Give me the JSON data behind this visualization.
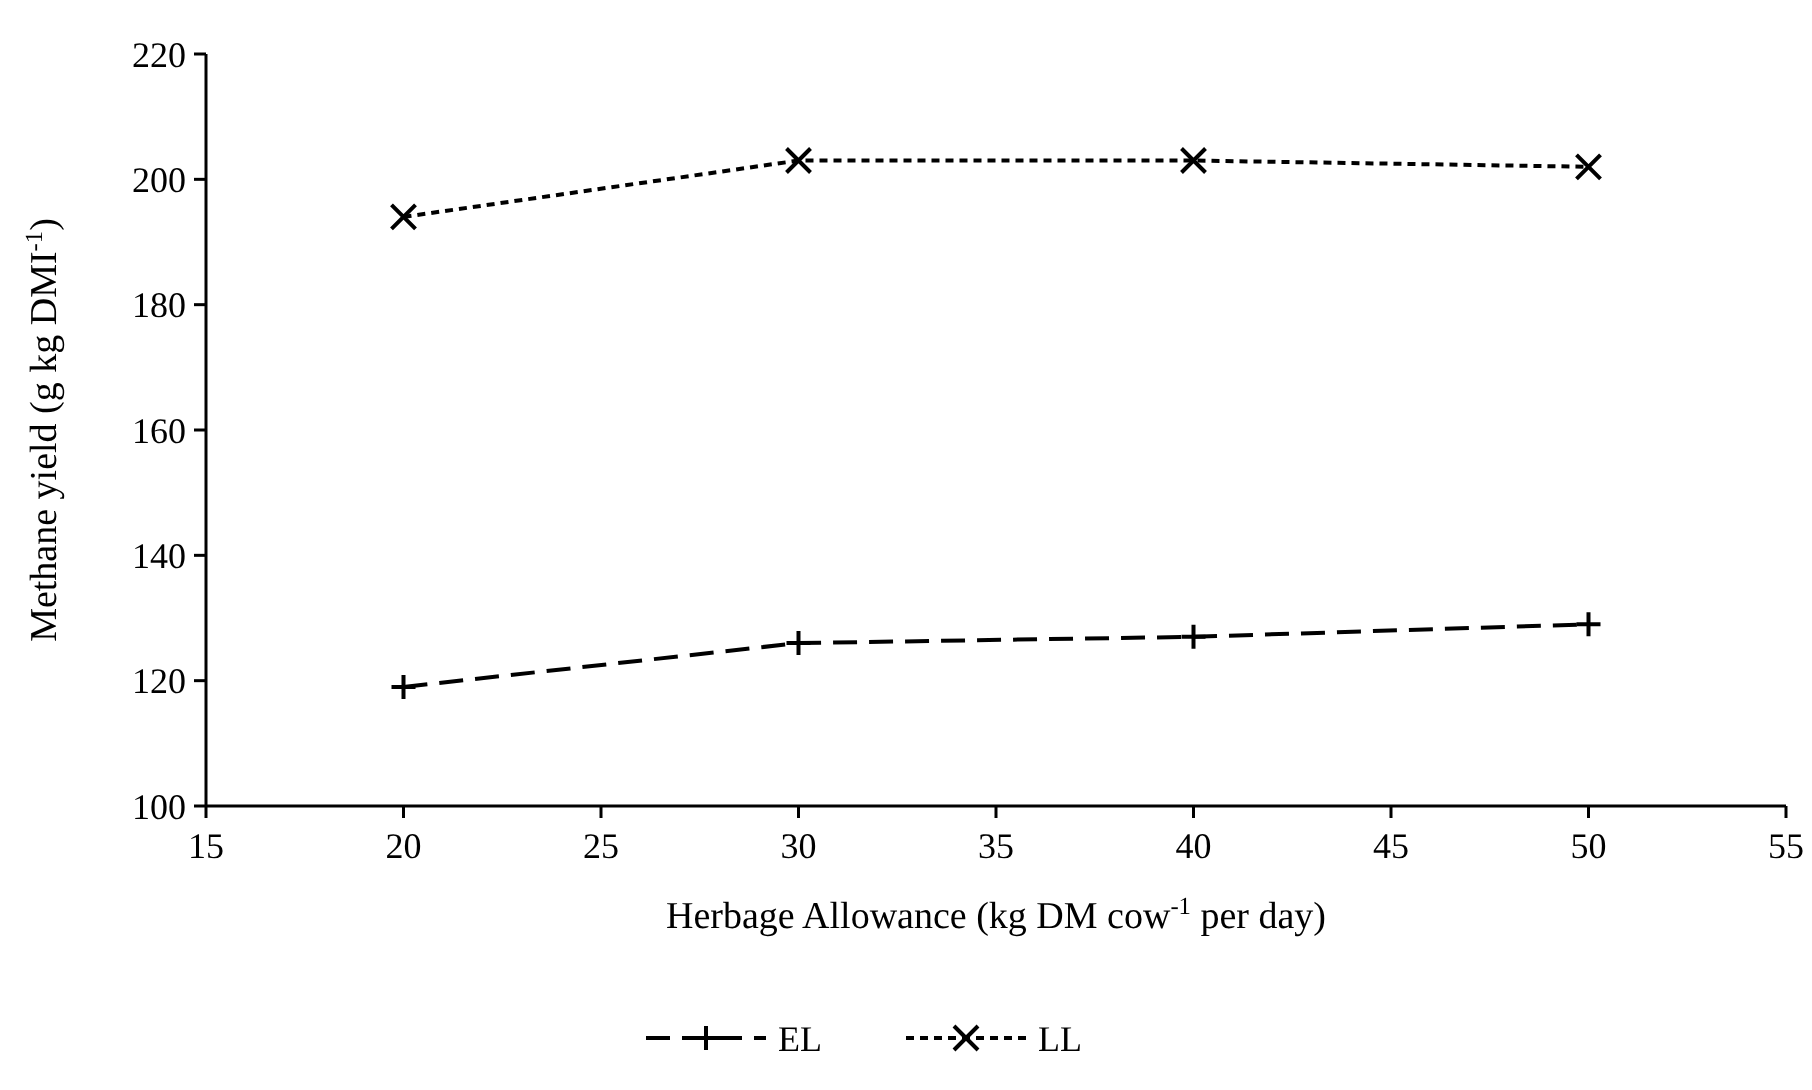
{
  "chart_data": {
    "type": "line",
    "xlabel": "Herbage Allowance (kg DM cow$^{-1}$ per day)",
    "ylabel": "Methane yield (g kg DMI$^{-1}$)",
    "x": [
      20,
      30,
      40,
      50
    ],
    "series": [
      {
        "name": "EL",
        "color": "#000000",
        "values": [
          119,
          126,
          127,
          129
        ],
        "marker": "plus",
        "line_style": "dashed"
      },
      {
        "name": "LL",
        "color": "#000000",
        "values": [
          194,
          203,
          203,
          202
        ],
        "marker": "cross",
        "line_style": "dotted"
      }
    ],
    "xlim": [
      15,
      55
    ],
    "xticks": [
      15,
      20,
      25,
      30,
      35,
      40,
      45,
      50,
      55
    ],
    "ylim": [
      100,
      220
    ],
    "yticks": [
      100,
      120,
      140,
      160,
      180,
      200,
      220
    ],
    "grid": false,
    "legend": "bottom"
  }
}
